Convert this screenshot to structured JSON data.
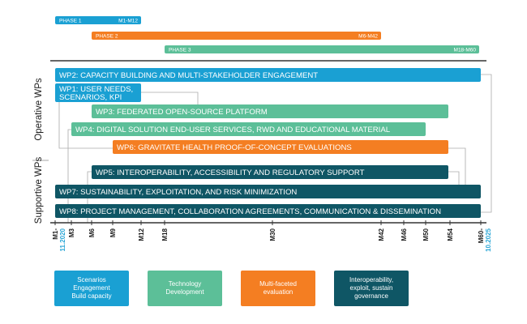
{
  "colors": {
    "blue": "#1aa0d3",
    "green": "#5cbf98",
    "orange": "#f47e22",
    "teal": "#0f5665",
    "connector": "#aaaaaa"
  },
  "phases": [
    {
      "id": "phase-1",
      "label": "PHASE 1",
      "range": "M1-M12",
      "start": 1,
      "end": 12,
      "color": "blue"
    },
    {
      "id": "phase-2",
      "label": "PHASE 2",
      "range": "M6-M42",
      "start": 6,
      "end": 42,
      "color": "orange"
    },
    {
      "id": "phase-3",
      "label": "PHASE 3",
      "range": "M18-M60",
      "start": 18,
      "end": 60,
      "color": "green"
    }
  ],
  "side_labels": {
    "operative": "Operative WPs",
    "supportive": "Supportive WPs"
  },
  "work_packages": [
    {
      "id": "wp2",
      "lines": [
        "WP2: CAPACITY BUILDING AND MULTI-STAKEHOLDER ENGAGEMENT"
      ],
      "start": 1,
      "end": 60,
      "color": "blue"
    },
    {
      "id": "wp1",
      "lines": [
        "WP1: USER NEEDS,",
        "SCENARIOS, KPI"
      ],
      "start": 1,
      "end": 12,
      "color": "blue"
    },
    {
      "id": "wp3",
      "lines": [
        "WP3: FEDERATED OPEN-SOURCE PLATFORM"
      ],
      "start": 6,
      "end": 54,
      "color": "green"
    },
    {
      "id": "wp4",
      "lines": [
        "WP4: DIGITAL SOLUTION END-USER SERVICES, RWD AND EDUCATIONAL MATERIAL"
      ],
      "start": 3,
      "end": 50,
      "color": "green"
    },
    {
      "id": "wp6",
      "lines": [
        "WP6: GRAVITATE HEALTH PROOF-OF-CONCEPT EVALUATIONS"
      ],
      "start": 9,
      "end": 54,
      "color": "orange"
    },
    {
      "id": "wp5",
      "lines": [
        "WP5: INTEROPERABILITY, ACCESSIBILITY AND REGULATORY SUPPORT"
      ],
      "start": 6,
      "end": 54,
      "color": "teal"
    },
    {
      "id": "wp7",
      "lines": [
        "WP7: SUSTAINABILITY, EXPLOITATION, AND RISK MINIMIZATION"
      ],
      "start": 1,
      "end": 60,
      "color": "teal"
    },
    {
      "id": "wp8",
      "lines": [
        "WP8: PROJECT MANAGEMENT, COLLABORATION AGREEMENTS, COMMUNICATION & DISSEMINATION"
      ],
      "start": 1,
      "end": 60,
      "color": "teal"
    }
  ],
  "ticks": [
    {
      "month": 1,
      "label": "M1-",
      "date": "11.2020"
    },
    {
      "month": 3,
      "label": "M3"
    },
    {
      "month": 6,
      "label": "M6"
    },
    {
      "month": 9,
      "label": "M9"
    },
    {
      "month": 12,
      "label": "M12"
    },
    {
      "month": 18,
      "label": "M18"
    },
    {
      "month": 30,
      "label": "M30"
    },
    {
      "month": 42,
      "label": "M42"
    },
    {
      "month": 46,
      "label": "M46"
    },
    {
      "month": 50,
      "label": "M50"
    },
    {
      "month": 54,
      "label": "M54"
    },
    {
      "month": 60,
      "label": "M60-",
      "date": "10.2025"
    }
  ],
  "legend": [
    {
      "id": "legend-scenarios",
      "text": "Scenarios\nEngagement\nBuild capacity",
      "color": "blue"
    },
    {
      "id": "legend-technology",
      "text": "Technology\nDevelopment",
      "color": "green"
    },
    {
      "id": "legend-evaluation",
      "text": "Multi-faceted\nevaluation",
      "color": "orange"
    },
    {
      "id": "legend-governance",
      "text": "Interoperability,\nexploit, sustain\ngovernance",
      "color": "teal"
    }
  ]
}
